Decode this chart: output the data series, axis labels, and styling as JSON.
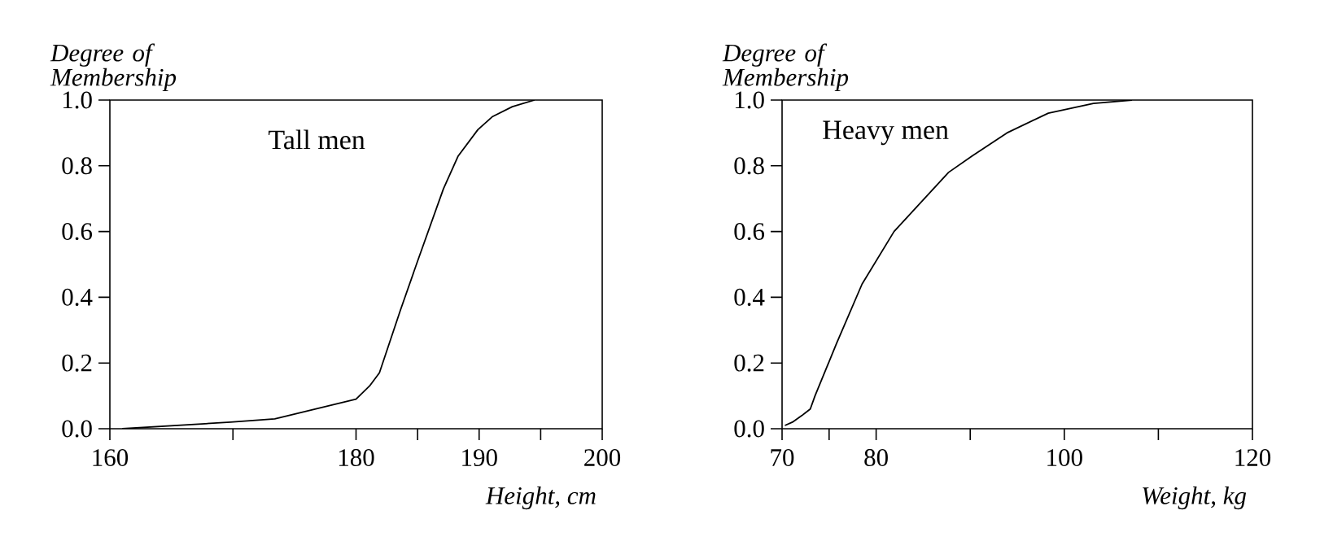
{
  "chart_data": [
    {
      "type": "line",
      "xlabel": "Height, cm",
      "ylabel": "Degree of Membership",
      "annotations": [
        "Tall men"
      ],
      "xlim": [
        160,
        200
      ],
      "ylim": [
        0,
        1
      ],
      "xticks": [
        160,
        {
          "value": 170,
          "label": null
        },
        180,
        {
          "value": 185,
          "label": null
        },
        190,
        {
          "value": 195,
          "label": null
        },
        200
      ],
      "yticks": [
        {
          "value": 0,
          "label": "0.0"
        },
        {
          "value": 0.2,
          "label": "0.2"
        },
        {
          "value": 0.4,
          "label": "0.4"
        },
        {
          "value": 0.6,
          "label": "0.6"
        },
        {
          "value": 0.8,
          "label": "0.8"
        },
        {
          "value": 1,
          "label": "1.0"
        }
      ],
      "x": [
        161,
        169.8,
        173.4,
        180.0,
        181.1,
        181.9,
        183.6,
        185.0,
        187.1,
        188.3,
        189.9,
        191.1,
        192.7,
        194.5
      ],
      "series": [
        {
          "color": "#000000",
          "values": [
            0.0,
            0.02,
            0.03,
            0.09,
            0.13,
            0.17,
            0.36,
            0.51,
            0.73,
            0.83,
            0.91,
            0.95,
            0.98,
            1.0
          ]
        }
      ]
    },
    {
      "type": "line",
      "xlabel": "Weight, kg",
      "ylabel": "Degree of Membership",
      "annotations": [
        "Heavy men"
      ],
      "xlim": [
        70,
        120
      ],
      "ylim": [
        0,
        1
      ],
      "xticks": [
        70,
        {
          "value": 75,
          "label": null
        },
        80,
        {
          "value": 90,
          "label": null
        },
        100,
        {
          "value": 110,
          "label": null
        },
        120
      ],
      "yticks": [
        {
          "value": 0,
          "label": "0.0"
        },
        {
          "value": 0.2,
          "label": "0.2"
        },
        {
          "value": 0.4,
          "label": "0.4"
        },
        {
          "value": 0.6,
          "label": "0.6"
        },
        {
          "value": 0.8,
          "label": "0.8"
        },
        {
          "value": 1,
          "label": "1.0"
        }
      ],
      "x": [
        70.3,
        71.1,
        72.1,
        73.0,
        73.5,
        75.8,
        78.5,
        81.9,
        87.7,
        90.2,
        93.9,
        98.3,
        103.1,
        107.2
      ],
      "series": [
        {
          "color": "#000000",
          "values": [
            0.01,
            0.02,
            0.04,
            0.06,
            0.1,
            0.26,
            0.44,
            0.6,
            0.78,
            0.83,
            0.9,
            0.96,
            0.99,
            1.0
          ]
        }
      ]
    }
  ]
}
